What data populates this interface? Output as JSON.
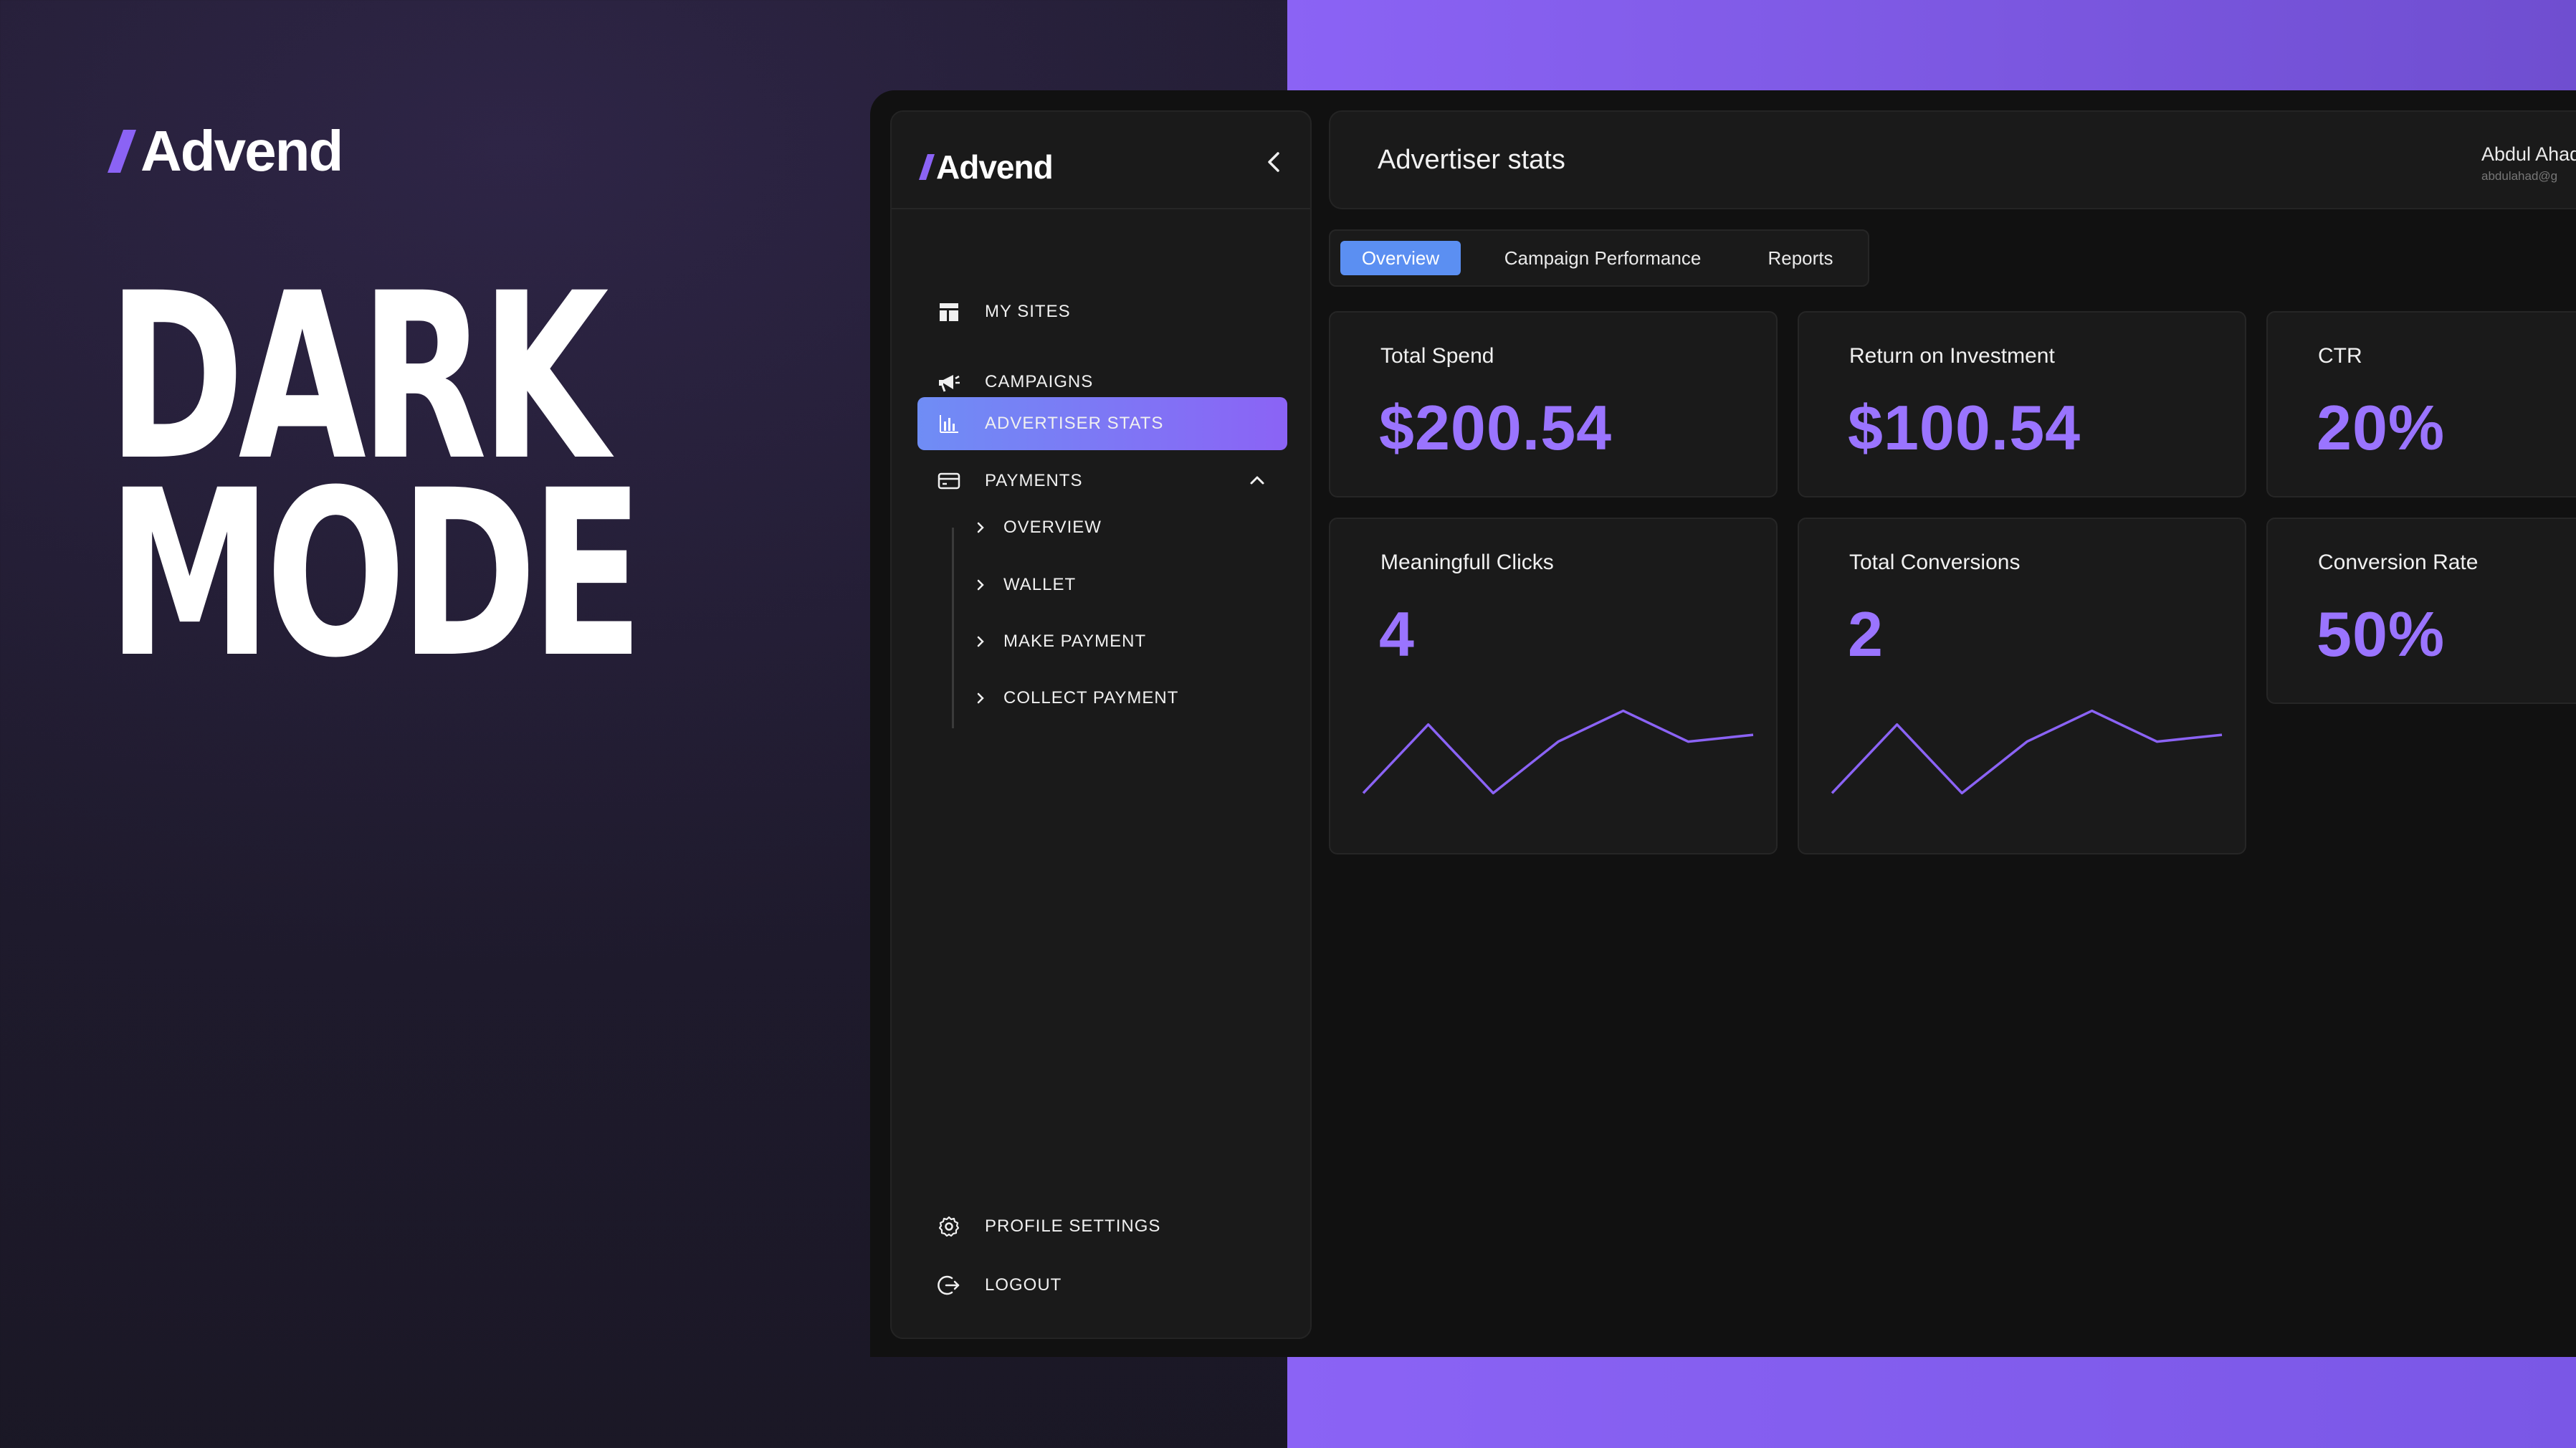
{
  "brand": {
    "name": "Advend",
    "accent": "#8b63f5"
  },
  "promo": {
    "line1": "DARK",
    "line2": "MODE"
  },
  "sidebar": {
    "items": [
      {
        "label": "MY SITES",
        "icon": "layout-icon"
      },
      {
        "label": "CAMPAIGNS",
        "icon": "megaphone-icon"
      },
      {
        "label": "ADVERTISER STATS",
        "icon": "bar-chart-icon",
        "active": true
      },
      {
        "label": "PAYMENTS",
        "icon": "credit-card-icon",
        "expanded": true
      }
    ],
    "payments_sub": [
      "OVERVIEW",
      "WALLET",
      "MAKE PAYMENT",
      "COLLECT PAYMENT"
    ],
    "footer": [
      {
        "label": "PROFILE SETTINGS",
        "icon": "gear-icon"
      },
      {
        "label": "LOGOUT",
        "icon": "logout-icon"
      }
    ]
  },
  "header": {
    "title": "Advertiser stats",
    "user_name": "Abdul Ahad",
    "user_email": "abdulahad@g"
  },
  "tabs": [
    {
      "label": "Overview",
      "active": true
    },
    {
      "label": "Campaign Performance"
    },
    {
      "label": "Reports"
    }
  ],
  "cards": [
    {
      "label": "Total Spend",
      "value": "$200.54"
    },
    {
      "label": "Return on Investment",
      "value": "$100.54"
    },
    {
      "label": "CTR",
      "value": "20%"
    },
    {
      "label": "Meaningfull Clicks",
      "value": "4"
    },
    {
      "label": "Total Conversions",
      "value": "2"
    },
    {
      "label": "Conversion Rate",
      "value": "50%"
    }
  ],
  "chart_data": [
    {
      "type": "line",
      "x": [
        1,
        2,
        3,
        4,
        5,
        6,
        7
      ],
      "values": [
        1,
        3,
        1,
        2.5,
        3.4,
        2.5,
        2.7
      ]
    },
    {
      "type": "line",
      "x": [
        1,
        2,
        3,
        4,
        5,
        6,
        7
      ],
      "values": [
        1,
        3,
        1,
        2.5,
        3.4,
        2.5,
        2.7
      ]
    }
  ]
}
